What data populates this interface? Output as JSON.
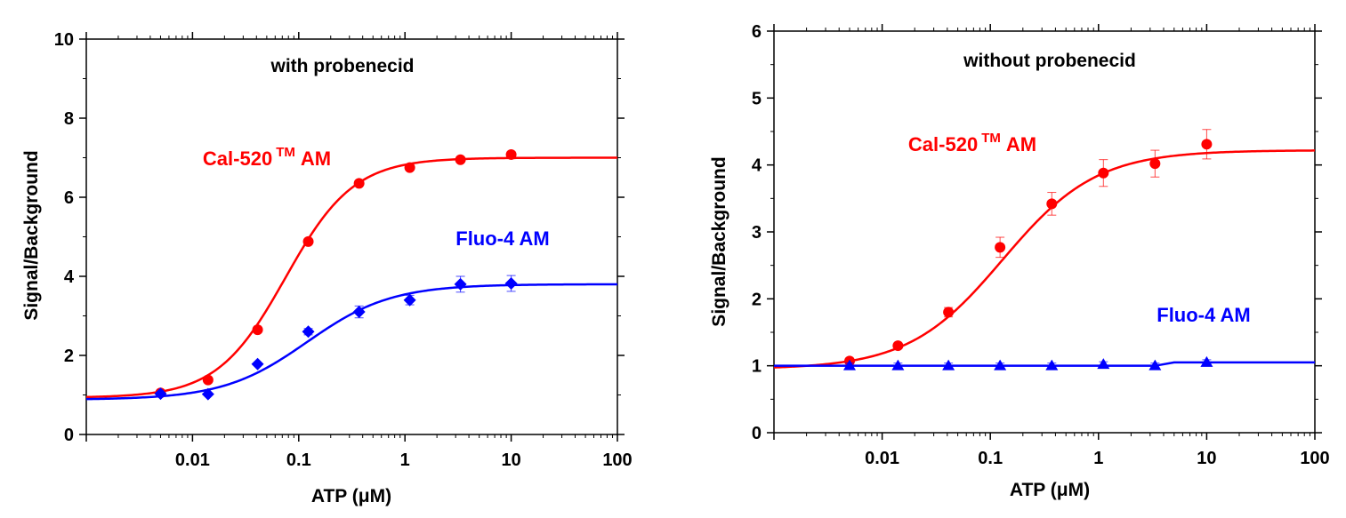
{
  "chart_data": [
    {
      "type": "scatter",
      "title": "with probenecid",
      "xlabel": "ATP (μM)",
      "ylabel": "Signal/Background",
      "xscale": "log",
      "xlim": [
        0.001,
        100
      ],
      "ylim": [
        0,
        10
      ],
      "x_ticks": [
        0.01,
        0.1,
        1,
        10,
        100
      ],
      "x_tick_labels": [
        "0.01",
        "0.1",
        "1",
        "10",
        "100"
      ],
      "y_ticks": [
        0,
        2,
        4,
        6,
        8,
        10
      ],
      "y_tick_labels": [
        "0",
        "2",
        "4",
        "6",
        "8",
        "10"
      ],
      "grid": false,
      "series": [
        {
          "name": "Cal-520",
          "name_sup": "TM",
          "name_suffix": "AM",
          "color": "#ff0000",
          "marker": "circle",
          "x": [
            0.005,
            0.014,
            0.041,
            0.123,
            0.37,
            1.11,
            3.33,
            10
          ],
          "y": [
            1.05,
            1.38,
            2.65,
            4.88,
            6.35,
            6.75,
            6.95,
            7.08
          ],
          "err": [
            0,
            0,
            0,
            0,
            0,
            0,
            0,
            0
          ],
          "fit": {
            "bottom": 0.93,
            "top": 7.0,
            "ec50": 0.075,
            "hill": 1.35
          }
        },
        {
          "name": "Fluo-4 AM",
          "color": "#0000ff",
          "marker": "diamond",
          "x": [
            0.005,
            0.014,
            0.041,
            0.123,
            0.37,
            1.11,
            3.33,
            10
          ],
          "y": [
            1.03,
            1.02,
            1.78,
            2.6,
            3.1,
            3.4,
            3.8,
            3.82
          ],
          "err": [
            0,
            0,
            0,
            0.08,
            0.15,
            0.12,
            0.2,
            0.2
          ],
          "fit": {
            "bottom": 0.88,
            "top": 3.8,
            "ec50": 0.12,
            "hill": 1.1
          }
        }
      ]
    },
    {
      "type": "scatter",
      "title": "without probenecid",
      "xlabel": "ATP (μM)",
      "ylabel": "Signal/Background",
      "xscale": "log",
      "xlim": [
        0.001,
        100
      ],
      "ylim": [
        0,
        6
      ],
      "x_ticks": [
        0.01,
        0.1,
        1,
        10,
        100
      ],
      "x_tick_labels": [
        "0.01",
        "0.1",
        "1",
        "10",
        "100"
      ],
      "y_ticks": [
        0,
        1,
        2,
        3,
        4,
        5,
        6
      ],
      "y_tick_labels": [
        "0",
        "1",
        "2",
        "3",
        "4",
        "5",
        "6"
      ],
      "grid": false,
      "series": [
        {
          "name": "Cal-520",
          "name_sup": "TM",
          "name_suffix": "AM",
          "color": "#ff0000",
          "marker": "circle",
          "x": [
            0.005,
            0.014,
            0.041,
            0.123,
            0.37,
            1.11,
            3.33,
            10
          ],
          "y": [
            1.07,
            1.3,
            1.8,
            2.77,
            3.42,
            3.88,
            4.02,
            4.31
          ],
          "err": [
            0,
            0,
            0.07,
            0.15,
            0.17,
            0.2,
            0.2,
            0.22
          ],
          "fit": {
            "bottom": 0.95,
            "top": 4.22,
            "ec50": 0.13,
            "hill": 1.0
          }
        },
        {
          "name": "Fluo-4 AM",
          "color": "#0000ff",
          "marker": "triangle",
          "x": [
            0.005,
            0.014,
            0.041,
            0.123,
            0.37,
            1.11,
            3.33,
            10
          ],
          "y": [
            1.0,
            1.0,
            1.0,
            1.0,
            1.0,
            1.02,
            1.0,
            1.05
          ],
          "err": [
            0.04,
            0.04,
            0.04,
            0.04,
            0.04,
            0.04,
            0.04,
            0.04
          ],
          "fit_polyline": {
            "x": [
              0.001,
              3.33,
              5.0,
              100
            ],
            "y": [
              1.0,
              1.0,
              1.05,
              1.05
            ]
          }
        }
      ]
    }
  ]
}
